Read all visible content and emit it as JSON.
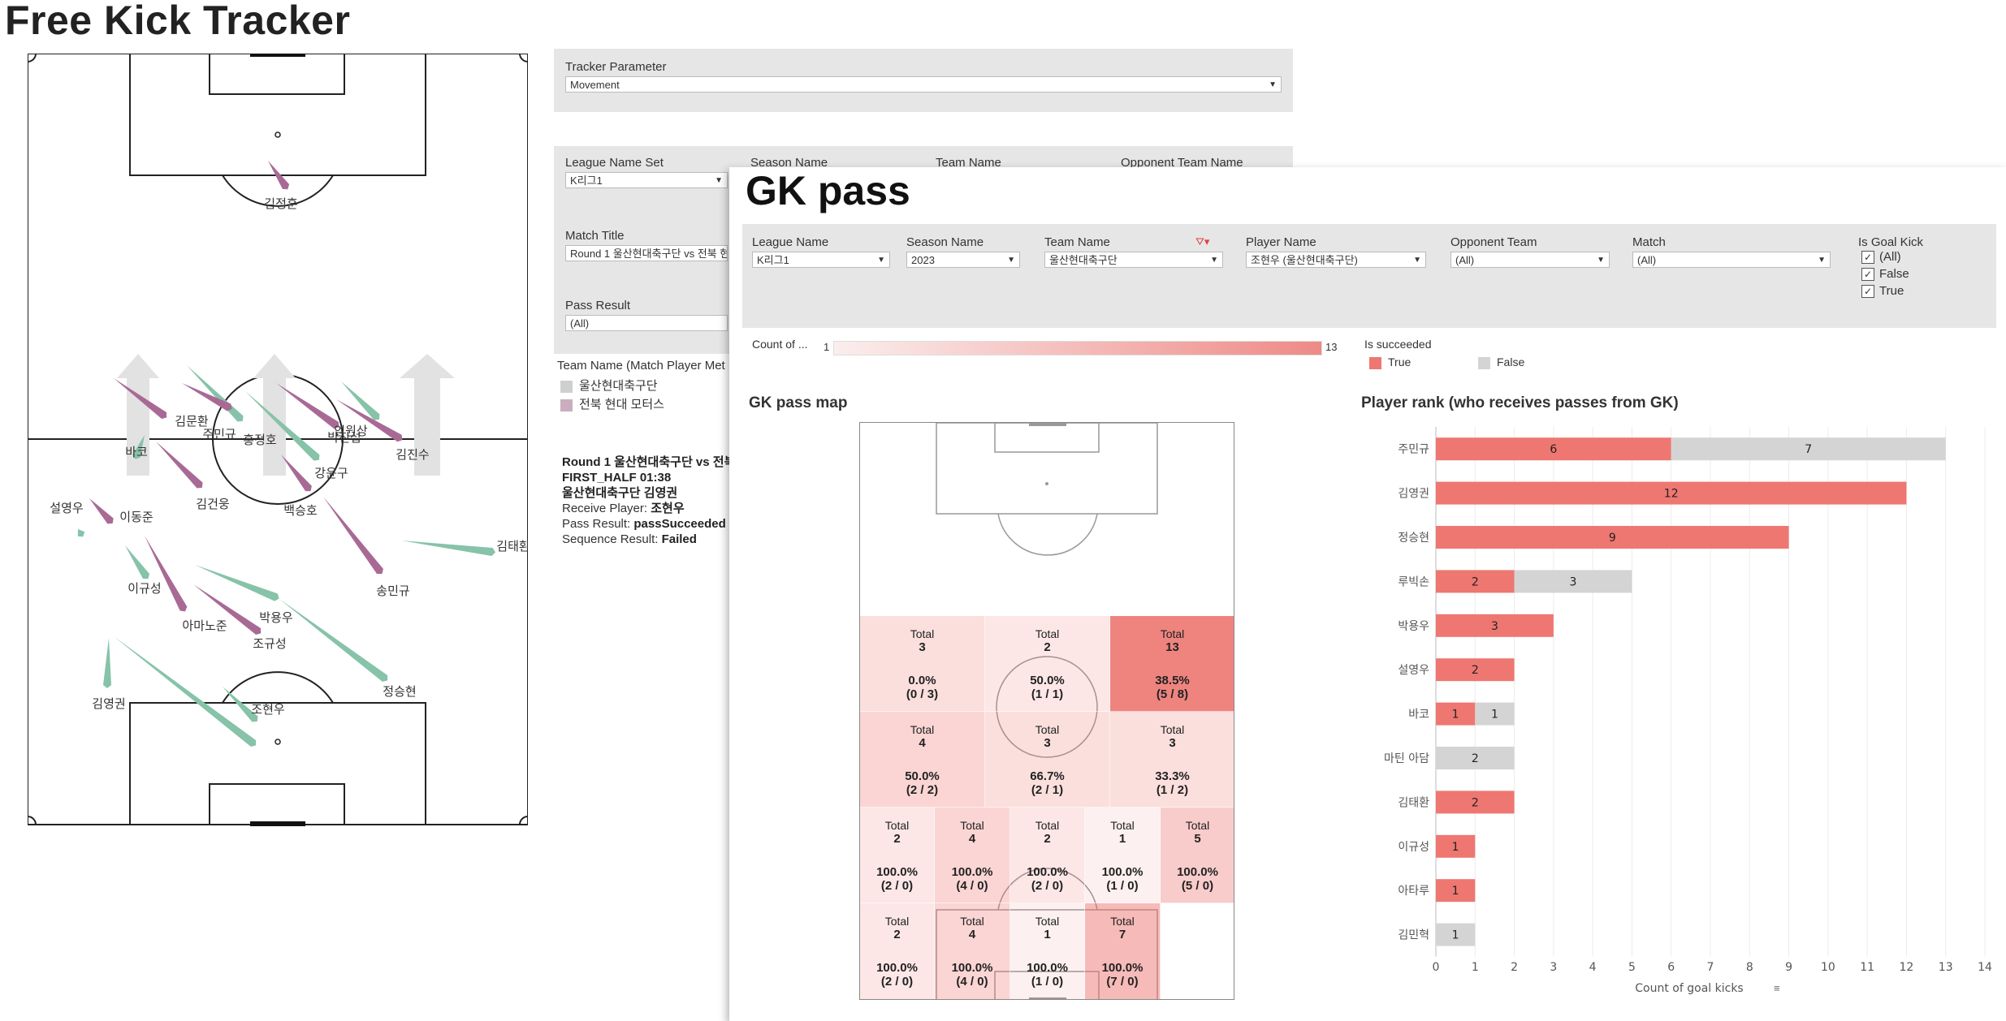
{
  "page": {
    "title": "Free Kick Tracker"
  },
  "tracker": {
    "param_label": "Tracker Parameter",
    "param_value": "Movement",
    "filters": {
      "league_label": "League Name Set",
      "league_value": "K리그1",
      "season_label": "Season Name",
      "team_label": "Team Name",
      "opponent_label": "Opponent Team Name",
      "match_label": "Match Title",
      "match_value": "Round 1 울산현대축구단 vs 전북 현",
      "pass_label": "Pass Result",
      "pass_value": "(All)"
    },
    "legend": {
      "title": "Team Name (Match Player Met",
      "items": [
        {
          "label": "울산현대축구단",
          "color": "#cfcfcf"
        },
        {
          "label": "전북 현대 모터스",
          "color": "#c9aebf"
        }
      ]
    },
    "info": {
      "line1": "Round 1 울산현대축구단 vs 전북",
      "line2": "FIRST_HALF 01:38",
      "line3": "울산현대축구단 김영권",
      "receive_label": "Receive Player: ",
      "receive_value": "조현우",
      "pass_label": "Pass Result: ",
      "pass_value": "passSucceeded",
      "seq_label": "Sequence Result: ",
      "seq_value": "Failed"
    },
    "players": {
      "p1": "김정훈",
      "p2": "김문환",
      "p3": "주민규",
      "p4": "홍정호",
      "p5": "박진섭",
      "p6": "엄원상",
      "p7": "김진수",
      "p8": "바코",
      "p9": "강윤구",
      "p10": "김건웅",
      "p11": "백승호",
      "p12": "설영우",
      "p13": "이동준",
      "p14": "김태환",
      "p15": "이규성",
      "p16": "송민규",
      "p17": "박용우",
      "p18": "아마노준",
      "p19": "조규성",
      "p20": "정승현",
      "p21": "김영권",
      "p22": "조현우"
    },
    "colors": {
      "green": "#86c3a8",
      "purple": "#a86a95"
    }
  },
  "gk": {
    "title": "GK pass",
    "filters": {
      "league_label": "League Name",
      "league_value": "K리그1",
      "season_label": "Season Name",
      "season_value": "2023",
      "team_label": "Team Name",
      "team_value": "울산현대축구단",
      "player_label": "Player Name",
      "player_value": "조현우 (울산현대축구단)",
      "opponent_label": "Opponent Team",
      "opponent_value": "(All)",
      "match_label": "Match",
      "match_value": "(All)",
      "goalkick_label": "Is Goal Kick",
      "goalkick_options": [
        "(All)",
        "False",
        "True"
      ]
    },
    "count_legend": {
      "label": "Count of ...",
      "min": "1",
      "max": "13"
    },
    "success_legend": {
      "title": "Is succeeded",
      "true_label": "True",
      "false_label": "False",
      "true_color": "#ee7771",
      "false_color": "#d4d4d4"
    },
    "map_title": "GK pass map",
    "cells": [
      {
        "total_label": "Total",
        "total": "3",
        "pct": "0.0%",
        "ratio": "(0 / 3)",
        "count": 3
      },
      {
        "total_label": "Total",
        "total": "2",
        "pct": "50.0%",
        "ratio": "(1 / 1)",
        "count": 2
      },
      {
        "total_label": "Total",
        "total": "13",
        "pct": "38.5%",
        "ratio": "(5 / 8)",
        "count": 13
      },
      {
        "total_label": "Total",
        "total": "4",
        "pct": "50.0%",
        "ratio": "(2 / 2)",
        "count": 4
      },
      {
        "total_label": "Total",
        "total": "3",
        "pct": "66.7%",
        "ratio": "(2 / 1)",
        "count": 3
      },
      {
        "total_label": "Total",
        "total": "3",
        "pct": "33.3%",
        "ratio": "(1 / 2)",
        "count": 3
      },
      {
        "total_label": "Total",
        "total": "2",
        "pct": "100.0%",
        "ratio": "(2 / 0)",
        "count": 2
      },
      {
        "total_label": "Total",
        "total": "4",
        "pct": "100.0%",
        "ratio": "(4 / 0)",
        "count": 4
      },
      {
        "total_label": "Total",
        "total": "2",
        "pct": "100.0%",
        "ratio": "(2 / 0)",
        "count": 2
      },
      {
        "total_label": "Total",
        "total": "1",
        "pct": "100.0%",
        "ratio": "(1 / 0)",
        "count": 1
      },
      {
        "total_label": "Total",
        "total": "5",
        "pct": "100.0%",
        "ratio": "(5 / 0)",
        "count": 5
      },
      {
        "total_label": "Total",
        "total": "2",
        "pct": "100.0%",
        "ratio": "(2 / 0)",
        "count": 2
      },
      {
        "total_label": "Total",
        "total": "4",
        "pct": "100.0%",
        "ratio": "(4 / 0)",
        "count": 4
      },
      {
        "total_label": "Total",
        "total": "1",
        "pct": "100.0%",
        "ratio": "(1 / 0)",
        "count": 1
      },
      {
        "total_label": "Total",
        "total": "7",
        "pct": "100.0%",
        "ratio": "(7 / 0)",
        "count": 7
      }
    ],
    "rank_title": "Player rank (who receives passes from GK)"
  },
  "chart_data": {
    "type": "bar",
    "orientation": "horizontal",
    "stacked": true,
    "title": "Player rank (who receives passes from GK)",
    "xlabel": "Count of goal kicks",
    "xlim": [
      0,
      14
    ],
    "xticks": [
      "0",
      "1",
      "2",
      "3",
      "4",
      "5",
      "6",
      "7",
      "8",
      "9",
      "10",
      "11",
      "12",
      "13",
      "14"
    ],
    "categories": [
      "주민규",
      "김영권",
      "정승현",
      "루빅손",
      "박용우",
      "설영우",
      "바코",
      "마틴 아담",
      "김태환",
      "이규성",
      "아타루",
      "김민혁"
    ],
    "series": [
      {
        "name": "True",
        "color": "#ee7771",
        "values": [
          6,
          12,
          9,
          2,
          3,
          2,
          1,
          0,
          2,
          1,
          1,
          0
        ]
      },
      {
        "name": "False",
        "color": "#d4d4d4",
        "values": [
          7,
          0,
          0,
          3,
          0,
          0,
          1,
          2,
          0,
          0,
          0,
          1
        ]
      }
    ],
    "grid": true
  }
}
